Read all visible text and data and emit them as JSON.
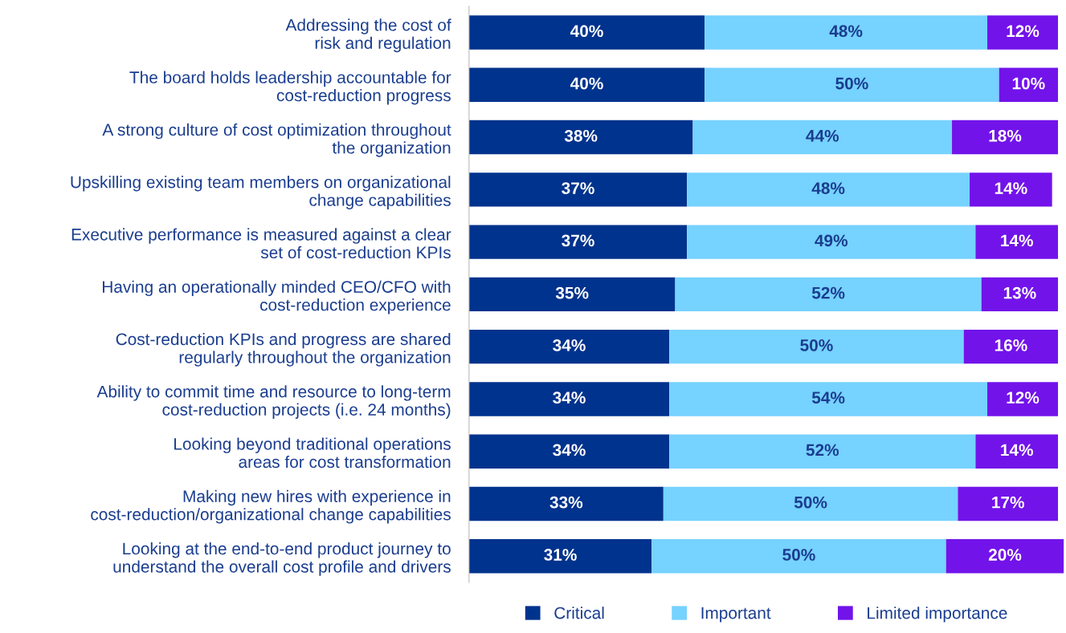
{
  "chart_data": {
    "type": "bar",
    "orientation": "horizontal",
    "stacked": true,
    "legend": "bottom",
    "grid": false,
    "tick_labels": "y",
    "categories": [
      "Addressing the cost of\nrisk and regulation",
      "The board holds leadership accountable for\ncost-reduction progress",
      "A strong culture of cost optimization throughout\nthe organization",
      "Upskilling existing team members on organizational\nchange capabilities",
      "Executive performance is measured against a clear\nset of cost-reduction KPIs",
      "Having an operationally minded CEO/CFO with\ncost-reduction experience",
      "Cost-reduction KPIs and progress are shared\nregularly throughout the organization",
      "Ability to commit time and resource to long-term\ncost-reduction projects (i.e. 24 months)",
      "Looking beyond traditional operations\nareas for cost transformation",
      "Making new hires with experience in\ncost-reduction/organizational change capabilities",
      "Looking at the end-to-end product journey to\nunderstand the overall cost profile and drivers"
    ],
    "series": [
      {
        "name": "Critical",
        "color": "#00338d",
        "values": [
          40,
          40,
          38,
          37,
          37,
          35,
          34,
          34,
          34,
          33,
          31
        ],
        "value_labels": [
          "40%",
          "40%",
          "38%",
          "37%",
          "37%",
          "35%",
          "34%",
          "34%",
          "34%",
          "33%",
          "31%"
        ]
      },
      {
        "name": "Important",
        "color": "#76d2ff",
        "values": [
          48,
          50,
          44,
          48,
          49,
          52,
          50,
          54,
          52,
          50,
          50
        ],
        "value_labels": [
          "48%",
          "50%",
          "44%",
          "48%",
          "49%",
          "52%",
          "50%",
          "54%",
          "52%",
          "50%",
          "50%"
        ]
      },
      {
        "name": "Limited importance",
        "color": "#7213ea",
        "values": [
          12,
          10,
          18,
          14,
          14,
          13,
          16,
          12,
          14,
          17,
          20
        ],
        "value_labels": [
          "12%",
          "10%",
          "18%",
          "14%",
          "14%",
          "13%",
          "16%",
          "12%",
          "14%",
          "17%",
          "20%"
        ]
      }
    ]
  }
}
